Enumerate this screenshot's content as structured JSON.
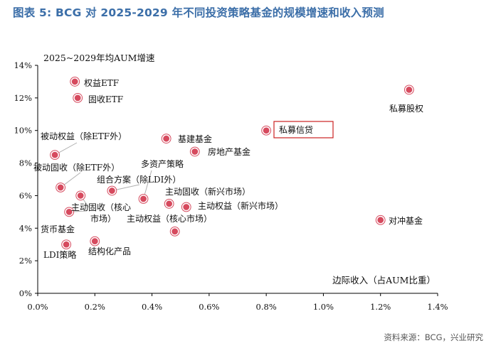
{
  "header": {
    "title": "图表 5:  BCG 对 2025-2029 年不同投资策略基金的规模增速和收入预测",
    "source": "资料来源：BCG，兴业研究"
  },
  "chart_data": {
    "type": "scatter",
    "title": "",
    "xlabel": "边际收入（占AUM比重）",
    "ylabel": "2025~2029年均AUM增速",
    "xlim": [
      0,
      1.4
    ],
    "ylim": [
      0,
      14
    ],
    "x_ticks": [
      0,
      0.2,
      0.4,
      0.6,
      0.8,
      1.0,
      1.2,
      1.4
    ],
    "y_ticks": [
      0,
      2,
      4,
      6,
      8,
      10,
      12,
      14
    ],
    "x_tick_labels": [
      "0.0%",
      "0.2%",
      "0.4%",
      "0.6%",
      "0.8%",
      "1.0%",
      "1.2%",
      "1.4%"
    ],
    "y_tick_labels": [
      "0%",
      "2%",
      "4%",
      "6%",
      "8%",
      "10%",
      "12%",
      "14%"
    ],
    "grid": false,
    "marker_color": "#d64a5e",
    "highlight_color": "#cc2222",
    "points": [
      {
        "label": "权益ETF",
        "x": 0.13,
        "y": 13.0
      },
      {
        "label": "固收ETF",
        "x": 0.14,
        "y": 12.0
      },
      {
        "label": "私募股权",
        "x": 1.3,
        "y": 12.5
      },
      {
        "label": "私募信贷",
        "x": 0.8,
        "y": 10.0,
        "highlighted": true
      },
      {
        "label": "基建基金",
        "x": 0.45,
        "y": 9.5
      },
      {
        "label": "房地产基金",
        "x": 0.55,
        "y": 8.7
      },
      {
        "label": "被动权益（除ETF外）",
        "x": 0.06,
        "y": 8.5
      },
      {
        "label": "被动固收（除ETF外）",
        "x": 0.08,
        "y": 6.5
      },
      {
        "label": "多资产策略",
        "x": 0.37,
        "y": 5.8
      },
      {
        "label": "组合方案（除LDI外）",
        "x": 0.26,
        "y": 6.3
      },
      {
        "label": "主动固收（新兴市场）",
        "x": 0.46,
        "y": 5.5
      },
      {
        "label": "主动权益（新兴市场）",
        "x": 0.52,
        "y": 5.3
      },
      {
        "label": "主动固收（核心市场）",
        "x": 0.15,
        "y": 6.0
      },
      {
        "label": "货币基金",
        "x": 0.11,
        "y": 5.0
      },
      {
        "label": "主动权益（核心市场）",
        "x": 0.48,
        "y": 3.8
      },
      {
        "label": "对冲基金",
        "x": 1.2,
        "y": 4.5
      },
      {
        "label": "结构化产品",
        "x": 0.2,
        "y": 3.2
      },
      {
        "label": "LDI策略",
        "x": 0.1,
        "y": 3.0
      }
    ],
    "label_text": {
      "equity_etf": "权益ETF",
      "fi_etf": "固收ETF",
      "pe": "私募股权",
      "private_credit": "私募信贷",
      "infra": "基建基金",
      "real_estate": "房地产基金",
      "passive_equity": "被动权益（除ETF外）",
      "passive_fi": "被动固收（除ETF外）",
      "multi_asset": "多资产策略",
      "solutions_line1": "组合方案（除LDI外）",
      "active_fi_em": "主动固收（新兴市场）",
      "active_eq_em": "主动权益（新兴市场）",
      "active_fi_core_line1": "主动固收（核心",
      "active_fi_core_line2": "市场）",
      "money_market": "货币基金",
      "active_eq_core": "主动权益（核心市场）",
      "hedge": "对冲基金",
      "structured": "结构化产品",
      "ldi": "LDI策略",
      "ylabel": "2025~2029年均AUM增速",
      "xlabel": "边际收入（占AUM比重）"
    }
  }
}
